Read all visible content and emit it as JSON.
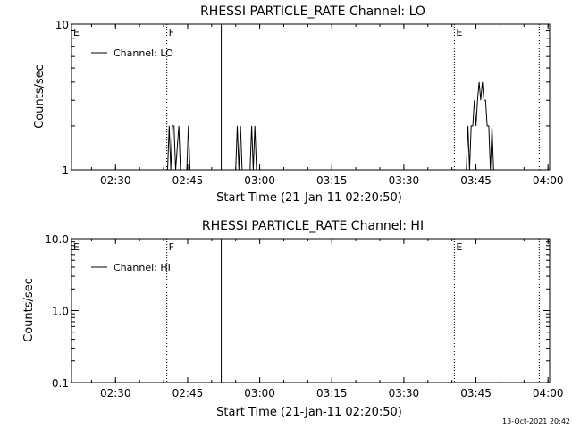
{
  "chart_data": [
    {
      "type": "line",
      "title": "RHESSI PARTICLE_RATE Channel: LO",
      "xlabel": "Start Time (21-Jan-11 02:20:50)",
      "ylabel": "Counts/sec",
      "yscale": "log",
      "ylim": [
        1,
        10
      ],
      "xlim": [
        "02:20:50",
        "04:00:20"
      ],
      "x_ticks": [
        "02:30",
        "02:45",
        "03:00",
        "03:15",
        "03:30",
        "03:45",
        "04:00"
      ],
      "y_ticks": [
        "1",
        "10"
      ],
      "legend": {
        "label": "Channel: LO",
        "placement": "top-left"
      },
      "markers": [
        {
          "label": "E",
          "time": "02:20:50",
          "style": "solid"
        },
        {
          "label": "F",
          "time": "02:40:40",
          "style": "dotted"
        },
        {
          "label": "",
          "time": "02:52:00",
          "style": "solid"
        },
        {
          "label": "E",
          "time": "03:40:30",
          "style": "dotted"
        },
        {
          "label": "",
          "time": "03:58:10",
          "style": "dotted"
        }
      ],
      "series": [
        {
          "name": "Channel: LO",
          "points": [
            [
              "02:40:50",
              1
            ],
            [
              "02:41:10",
              2
            ],
            [
              "02:41:30",
              1
            ],
            [
              "02:41:50",
              2
            ],
            [
              "02:42:10",
              2
            ],
            [
              "02:42:30",
              1
            ],
            [
              "02:43:10",
              2
            ],
            [
              "02:43:30",
              1
            ],
            [
              "02:44:30",
              1
            ],
            [
              "02:44:50",
              1
            ],
            [
              "02:45:10",
              2
            ],
            [
              "02:45:30",
              1
            ],
            [
              "02:55:00",
              1
            ],
            [
              "02:55:20",
              2
            ],
            [
              "02:55:40",
              1
            ],
            [
              "02:56:00",
              2
            ],
            [
              "02:56:20",
              1
            ],
            [
              "02:58:00",
              1
            ],
            [
              "02:58:20",
              2
            ],
            [
              "02:58:40",
              1
            ],
            [
              "02:59:00",
              2
            ],
            [
              "02:59:20",
              1
            ],
            [
              "03:43:00",
              1
            ],
            [
              "03:43:20",
              2
            ],
            [
              "03:43:40",
              1
            ],
            [
              "03:44:00",
              2
            ],
            [
              "03:44:20",
              2
            ],
            [
              "03:44:40",
              3
            ],
            [
              "03:45:00",
              2
            ],
            [
              "03:45:20",
              3
            ],
            [
              "03:45:40",
              4
            ],
            [
              "03:46:00",
              3
            ],
            [
              "03:46:20",
              4
            ],
            [
              "03:46:40",
              3
            ],
            [
              "03:47:00",
              3
            ],
            [
              "03:47:20",
              2
            ],
            [
              "03:47:40",
              2
            ],
            [
              "03:48:00",
              1
            ],
            [
              "03:48:20",
              2
            ],
            [
              "03:48:40",
              1
            ],
            [
              "03:49:00",
              1
            ]
          ]
        }
      ]
    },
    {
      "type": "line",
      "title": "RHESSI PARTICLE_RATE Channel: HI",
      "xlabel": "Start Time (21-Jan-11 02:20:50)",
      "ylabel": "Counts/sec",
      "yscale": "log",
      "ylim": [
        0.1,
        10
      ],
      "xlim": [
        "02:20:50",
        "04:00:20"
      ],
      "x_ticks": [
        "02:30",
        "02:45",
        "03:00",
        "03:15",
        "03:30",
        "03:45",
        "04:00"
      ],
      "y_ticks": [
        "0.1",
        "1.0",
        "10.0"
      ],
      "legend": {
        "label": "Channel: HI",
        "placement": "top-left"
      },
      "markers": [
        {
          "label": "E",
          "time": "02:20:50",
          "style": "solid"
        },
        {
          "label": "F",
          "time": "02:40:40",
          "style": "dotted"
        },
        {
          "label": "",
          "time": "02:52:00",
          "style": "solid"
        },
        {
          "label": "E",
          "time": "03:40:30",
          "style": "dotted"
        },
        {
          "label": "",
          "time": "03:58:10",
          "style": "dotted"
        }
      ],
      "series": [
        {
          "name": "Channel: HI",
          "points": []
        }
      ]
    }
  ],
  "footer": {
    "timestamp": "13-Oct-2021 20:42"
  }
}
